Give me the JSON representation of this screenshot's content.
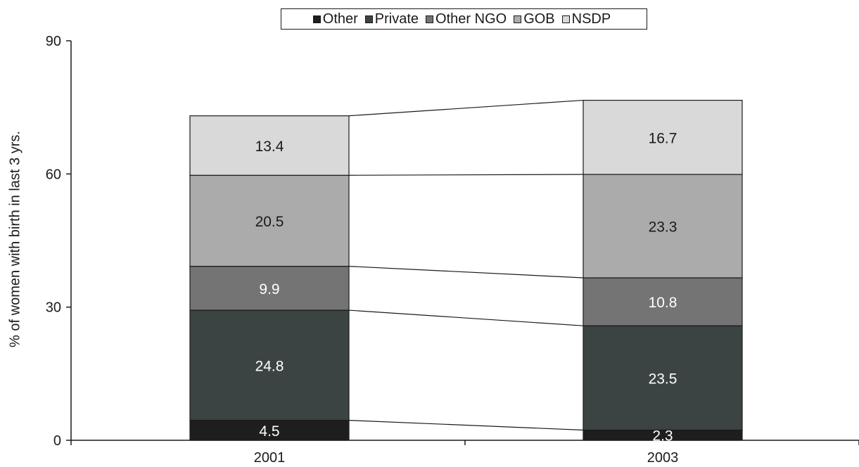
{
  "chart_data": {
    "type": "bar",
    "stacked": true,
    "categories": [
      "2001",
      "2003"
    ],
    "series": [
      {
        "name": "Other",
        "values": [
          4.5,
          2.3
        ],
        "color": "#1e1e1e",
        "label_color": "#ffffff"
      },
      {
        "name": "Private",
        "values": [
          24.8,
          23.5
        ],
        "color": "#3b4442",
        "label_color": "#ffffff"
      },
      {
        "name": "Other NGO",
        "values": [
          9.9,
          10.8
        ],
        "color": "#747474",
        "label_color": "#ffffff"
      },
      {
        "name": "GOB",
        "values": [
          20.5,
          23.3
        ],
        "color": "#ababab",
        "label_color": "#1a1a1a"
      },
      {
        "name": "NSDP",
        "values": [
          13.4,
          16.7
        ],
        "color": "#d9d9d9",
        "label_color": "#1a1a1a"
      }
    ],
    "ylabel": "% of women with birth in last 3 yrs.",
    "xlabel": "",
    "ylim": [
      0,
      90
    ],
    "yticks": [
      0,
      30,
      60,
      90
    ],
    "grid": false,
    "legend_position": "top",
    "series_lines": true
  }
}
